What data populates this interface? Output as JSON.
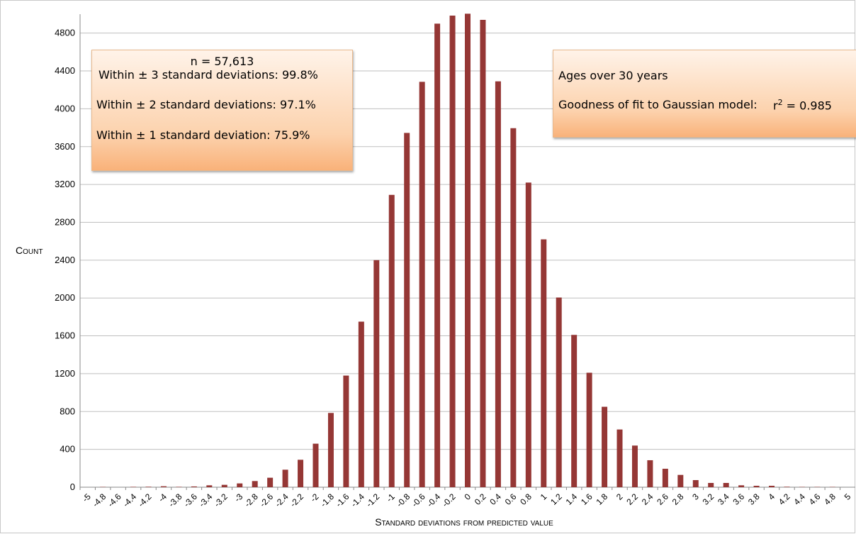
{
  "chart_data": {
    "type": "bar",
    "xlabel": "Standard deviations from predicted value",
    "ylabel": "Count",
    "ylim": [
      0,
      5000
    ],
    "yticks": [
      0,
      400,
      800,
      1200,
      1600,
      2000,
      2400,
      2800,
      3200,
      3600,
      4000,
      4400,
      4800
    ],
    "grid": "horizontal",
    "bar_color": "#953735",
    "categories": [
      "-5",
      "-4.8",
      "-4.6",
      "-4.4",
      "-4.2",
      "-4",
      "-3.8",
      "-3.6",
      "-3.4",
      "-3.2",
      "-3",
      "-2.8",
      "-2.6",
      "-2.4",
      "-2.2",
      "-2",
      "-1.8",
      "-1.6",
      "-1.4",
      "-1.2",
      "-1",
      "-0.8",
      "-0.6",
      "-0.4",
      "-0.2",
      "0",
      "0.2",
      "0.4",
      "0.6",
      "0.8",
      "1",
      "1.2",
      "1.4",
      "1.6",
      "1.8",
      "2",
      "2.2",
      "2.4",
      "2.6",
      "2.8",
      "3",
      "3.2",
      "3.4",
      "3.6",
      "3.8",
      "4",
      "4.2",
      "4.4",
      "4.6",
      "4.8",
      "5"
    ],
    "values": [
      0,
      3,
      0,
      4,
      5,
      10,
      4,
      8,
      20,
      25,
      40,
      65,
      100,
      185,
      290,
      460,
      785,
      1180,
      1750,
      2400,
      3090,
      3745,
      4285,
      4900,
      4985,
      5005,
      4940,
      4290,
      3795,
      3220,
      2620,
      2005,
      1610,
      1210,
      850,
      610,
      440,
      285,
      195,
      130,
      75,
      45,
      45,
      20,
      15,
      15,
      5,
      3,
      3,
      3,
      0
    ]
  },
  "stats_box": {
    "n_line": "n = 57,613",
    "within3": "Within ± 3 standard deviations:  99.8%",
    "within2": "Within ± 2 standard deviations:  97.1%",
    "within1": "Within ± 1 standard deviation:   75.9%"
  },
  "fit_box": {
    "ages": "Ages over 30 years",
    "goodness": "Goodness of fit to Gaussian model:",
    "r2_prefix": "r",
    "r2_sup": "2",
    "r2_value": " = 0.985"
  }
}
